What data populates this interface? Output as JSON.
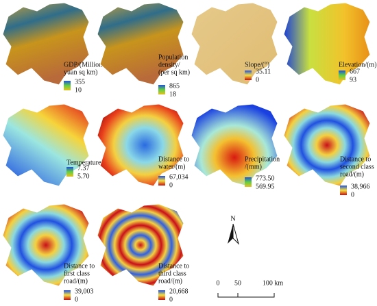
{
  "panels": [
    {
      "label": [
        "GDP/(Million",
        "yuan sq km)"
      ],
      "legend_max": "355",
      "legend_min": "10"
    },
    {
      "label": [
        "Population",
        "density/",
        "(per sq km)"
      ],
      "legend_max": "865",
      "legend_min": "18"
    },
    {
      "label": [
        "Slope/(°)"
      ],
      "legend_max": "35.11",
      "legend_min": "0"
    },
    {
      "label": [
        "Elevation/(m)"
      ],
      "legend_max": "667",
      "legend_min": "93"
    },
    {
      "label": [
        "Temperature/(°C)"
      ],
      "legend_max": "7.37",
      "legend_min": "5.70"
    },
    {
      "label": [
        "Distance to",
        "water/(m)"
      ],
      "legend_max": "67,034",
      "legend_min": "0"
    },
    {
      "label": [
        "Precipitation",
        "/(mm)"
      ],
      "legend_max": "773.50",
      "legend_min": "569.95"
    },
    {
      "label": [
        "Distance to",
        "second class",
        "road/(m)"
      ],
      "legend_max": "38,966",
      "legend_min": "0"
    },
    {
      "label": [
        "Distance to",
        "first class",
        "road/(m)"
      ],
      "legend_max": "39,003",
      "legend_min": "0"
    },
    {
      "label": [
        "Distance to",
        "third class",
        "road/(m)"
      ],
      "legend_max": "20,668",
      "legend_min": "0"
    }
  ],
  "north": "N",
  "scale": [
    "0",
    "50",
    "100 km"
  ]
}
